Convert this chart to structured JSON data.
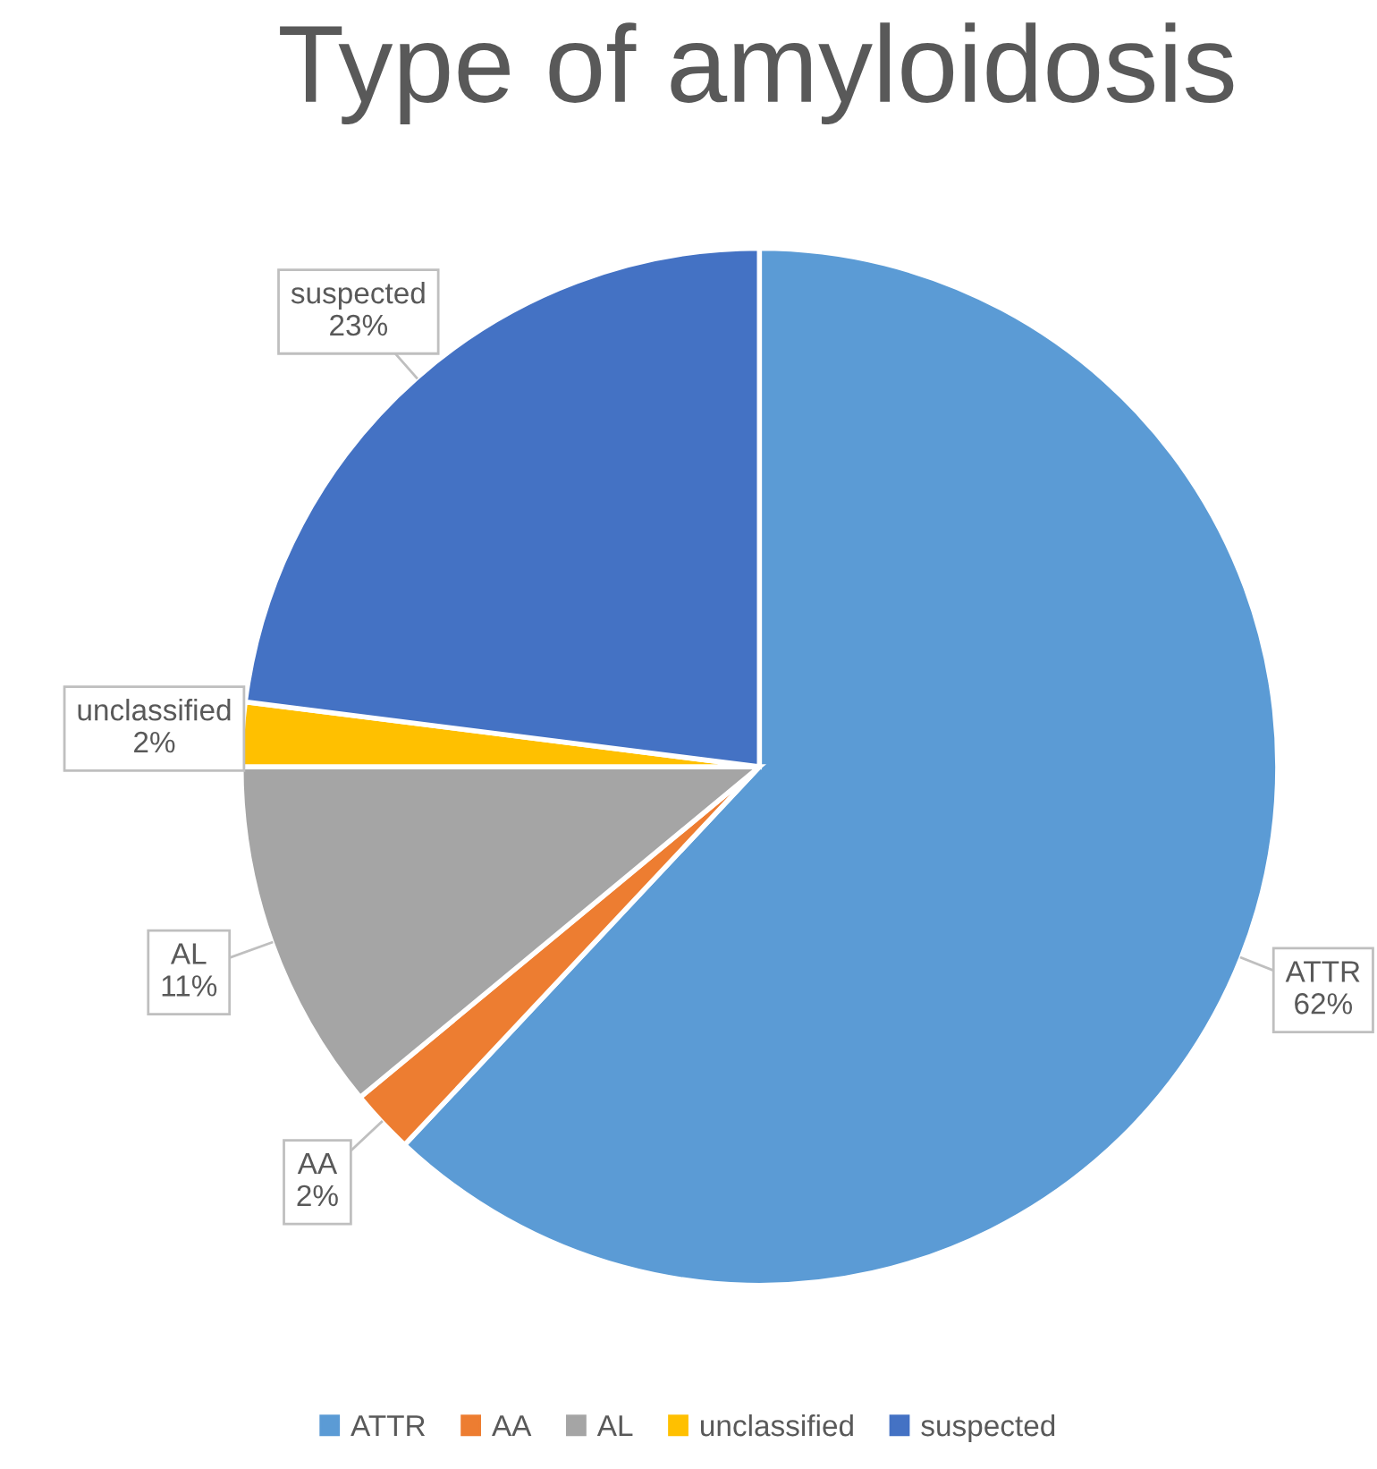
{
  "chart_data": {
    "type": "pie",
    "title": "Type of amyloidosis",
    "categories": [
      "ATTR",
      "AA",
      "AL",
      "unclassified",
      "suspected"
    ],
    "values": [
      62,
      2,
      11,
      2,
      23
    ],
    "value_labels": [
      "62%",
      "2%",
      "11%",
      "2%",
      "23%"
    ],
    "colors": [
      "#5b9bd5",
      "#ed7d31",
      "#a5a5a5",
      "#ffc000",
      "#4472c4"
    ],
    "legend": "bottom"
  }
}
